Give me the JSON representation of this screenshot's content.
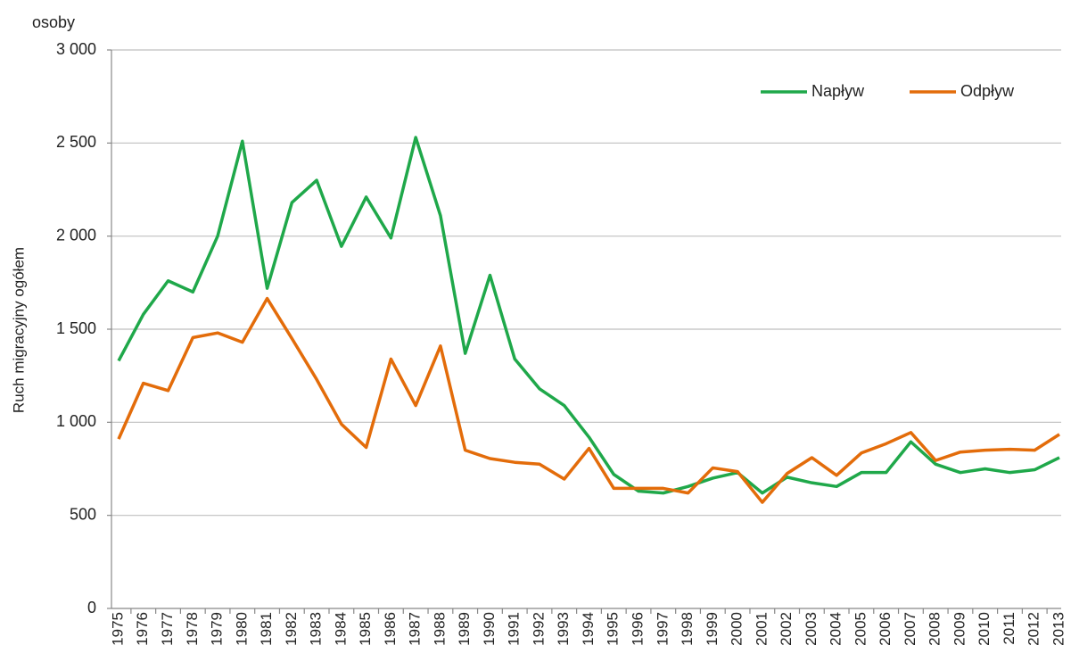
{
  "chart_data": {
    "type": "line",
    "y_unit_label": "osoby",
    "y_label": "Ruch migracyjny ogółem",
    "categories": [
      "1975",
      "1976",
      "1977",
      "1978",
      "1979",
      "1980",
      "1981",
      "1982",
      "1983",
      "1984",
      "1985",
      "1986",
      "1987",
      "1988",
      "1989",
      "1990",
      "1991",
      "1992",
      "1993",
      "1994",
      "1995",
      "1996",
      "1997",
      "1998",
      "1999",
      "2000",
      "2001",
      "2002",
      "2003",
      "2004",
      "2005",
      "2006",
      "2007",
      "2008",
      "2009",
      "2010",
      "2011",
      "2012",
      "2013"
    ],
    "series": [
      {
        "name": "Napływ",
        "color": "#1fa84a",
        "values": [
          1330,
          1580,
          1760,
          1700,
          2000,
          2510,
          1720,
          2180,
          2300,
          1945,
          2210,
          1990,
          2530,
          2110,
          1370,
          1790,
          1340,
          1180,
          1090,
          920,
          720,
          630,
          620,
          655,
          700,
          730,
          620,
          705,
          675,
          655,
          730,
          730,
          895,
          775,
          730,
          750,
          730,
          745,
          810
        ]
      },
      {
        "name": "Odpływ",
        "color": "#e36c0a",
        "values": [
          910,
          1210,
          1170,
          1455,
          1480,
          1430,
          1665,
          1450,
          1230,
          990,
          865,
          1340,
          1090,
          1410,
          850,
          805,
          785,
          775,
          695,
          860,
          645,
          645,
          645,
          620,
          755,
          735,
          570,
          725,
          810,
          715,
          835,
          885,
          945,
          795,
          840,
          850,
          855,
          850,
          935
        ]
      }
    ],
    "ylim": [
      0,
      3000
    ],
    "yticks": [
      0,
      500,
      {
        "value": 1000,
        "label": "1 000"
      },
      {
        "value": 1500,
        "label": "1 500"
      },
      {
        "value": 2000,
        "label": "2 000"
      },
      {
        "value": 2500,
        "label": "2 500"
      },
      {
        "value": 3000,
        "label": "3 000"
      }
    ],
    "grid": true,
    "legend": "upper right"
  }
}
